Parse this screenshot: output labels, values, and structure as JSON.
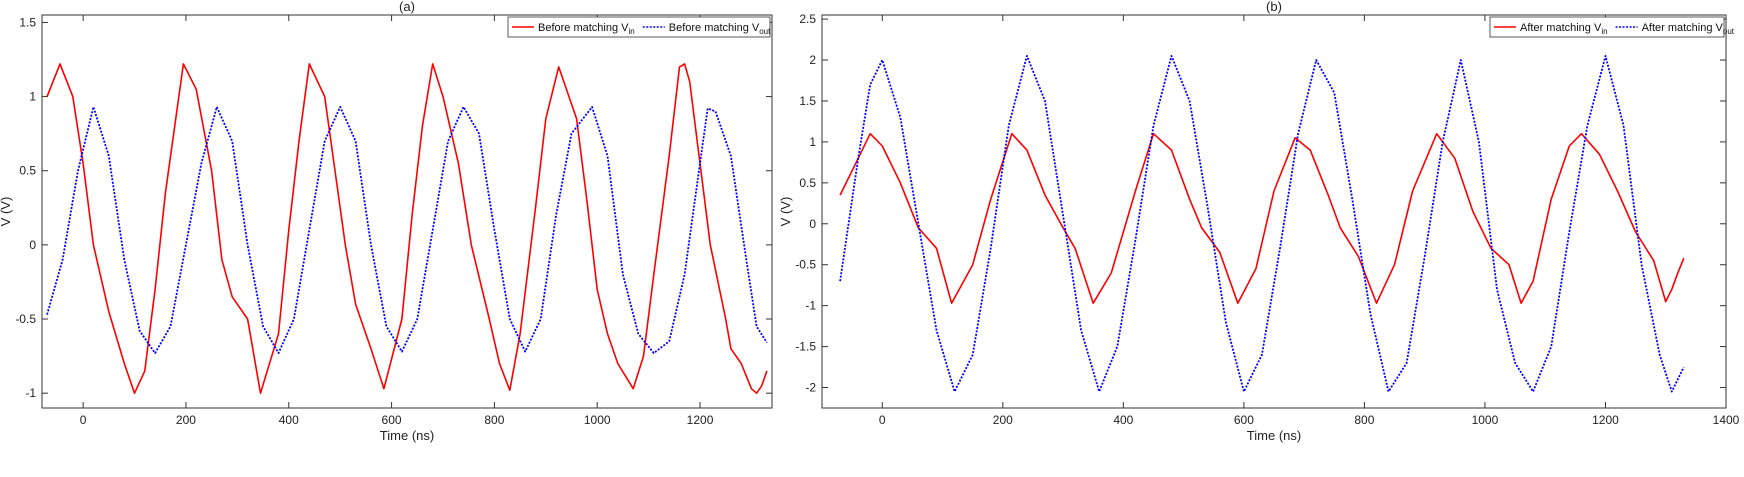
{
  "chart_data": [
    {
      "type": "line",
      "panel_title": "(a)",
      "xlabel": "Time (ns)",
      "ylabel": "V (V)",
      "xlim": [
        -80,
        1340
      ],
      "ylim": [
        -1.1,
        1.55
      ],
      "xticks": [
        0,
        200,
        400,
        600,
        800,
        1000,
        1200
      ],
      "yticks": [
        -1,
        -0.5,
        0,
        0.5,
        1,
        1.5
      ],
      "legend": "top-right",
      "series": [
        {
          "name": "Before matching V",
          "name_sub": "in",
          "color": "#ff0000",
          "style": "solid",
          "x": [
            -70,
            -45,
            -20,
            0,
            20,
            50,
            80,
            100,
            120,
            140,
            160,
            195,
            220,
            250,
            270,
            290,
            320,
            345,
            380,
            400,
            420,
            440,
            470,
            490,
            510,
            530,
            560,
            585,
            620,
            640,
            660,
            680,
            700,
            730,
            755,
            790,
            810,
            830,
            850,
            880,
            900,
            925,
            960,
            980,
            1000,
            1020,
            1040,
            1070,
            1090,
            1110,
            1140,
            1160,
            1170,
            1180,
            1200,
            1220,
            1250,
            1260,
            1280,
            1300,
            1310,
            1320,
            1330
          ],
          "y": [
            1.0,
            1.22,
            1.0,
            0.55,
            0.0,
            -0.45,
            -0.8,
            -1.0,
            -0.85,
            -0.3,
            0.35,
            1.22,
            1.05,
            0.5,
            -0.1,
            -0.35,
            -0.5,
            -1.0,
            -0.6,
            0.1,
            0.7,
            1.22,
            1.0,
            0.5,
            0.0,
            -0.4,
            -0.7,
            -0.97,
            -0.5,
            0.2,
            0.8,
            1.22,
            1.0,
            0.55,
            0.0,
            -0.5,
            -0.8,
            -0.98,
            -0.6,
            0.25,
            0.85,
            1.2,
            0.85,
            0.3,
            -0.3,
            -0.6,
            -0.8,
            -0.97,
            -0.75,
            -0.2,
            0.6,
            1.2,
            1.22,
            1.1,
            0.55,
            0.0,
            -0.5,
            -0.7,
            -0.8,
            -0.97,
            -1.0,
            -0.95,
            -0.85
          ]
        },
        {
          "name": "Before matching V",
          "name_sub": "out",
          "color": "#0000ff",
          "style": "dotted",
          "x": [
            -70,
            -40,
            -10,
            20,
            50,
            80,
            110,
            140,
            170,
            200,
            230,
            260,
            290,
            320,
            350,
            380,
            410,
            440,
            470,
            500,
            530,
            560,
            590,
            620,
            650,
            680,
            710,
            740,
            770,
            800,
            830,
            860,
            890,
            920,
            950,
            990,
            1020,
            1050,
            1080,
            1110,
            1140,
            1170,
            1200,
            1215,
            1230,
            1260,
            1290,
            1310,
            1330
          ],
          "y": [
            -0.47,
            -0.1,
            0.5,
            0.93,
            0.6,
            -0.1,
            -0.58,
            -0.73,
            -0.55,
            0.0,
            0.55,
            0.93,
            0.7,
            0.0,
            -0.55,
            -0.73,
            -0.5,
            0.1,
            0.7,
            0.93,
            0.7,
            0.0,
            -0.55,
            -0.72,
            -0.5,
            0.1,
            0.7,
            0.93,
            0.75,
            0.1,
            -0.5,
            -0.72,
            -0.5,
            0.2,
            0.75,
            0.93,
            0.6,
            -0.2,
            -0.6,
            -0.73,
            -0.65,
            -0.2,
            0.55,
            0.92,
            0.9,
            0.6,
            -0.1,
            -0.55,
            -0.66
          ]
        }
      ]
    },
    {
      "type": "line",
      "panel_title": "(b)",
      "xlabel": "Time (ns)",
      "ylabel": "V (V)",
      "xlim": [
        -100,
        1400
      ],
      "ylim": [
        -2.25,
        2.55
      ],
      "xticks": [
        0,
        200,
        400,
        600,
        800,
        1000,
        1200,
        1400
      ],
      "yticks": [
        -2,
        -1.5,
        -1,
        -0.5,
        0,
        0.5,
        1,
        1.5,
        2,
        2.5
      ],
      "legend": "top-right",
      "series": [
        {
          "name": "After matching V",
          "name_sub": "in",
          "color": "#ff0000",
          "style": "solid",
          "x": [
            -70,
            -40,
            -20,
            0,
            30,
            60,
            90,
            115,
            150,
            180,
            215,
            240,
            270,
            300,
            320,
            350,
            380,
            420,
            450,
            480,
            510,
            530,
            560,
            590,
            620,
            650,
            685,
            710,
            740,
            760,
            790,
            820,
            850,
            880,
            920,
            950,
            980,
            1010,
            1040,
            1060,
            1080,
            1110,
            1140,
            1160,
            1190,
            1220,
            1250,
            1280,
            1300,
            1310,
            1320,
            1330
          ],
          "y": [
            0.35,
            0.8,
            1.1,
            0.95,
            0.5,
            -0.05,
            -0.3,
            -0.97,
            -0.5,
            0.3,
            1.1,
            0.9,
            0.35,
            -0.05,
            -0.3,
            -0.97,
            -0.6,
            0.4,
            1.1,
            0.9,
            0.3,
            -0.05,
            -0.35,
            -0.97,
            -0.55,
            0.4,
            1.05,
            0.9,
            0.35,
            -0.05,
            -0.4,
            -0.97,
            -0.5,
            0.4,
            1.1,
            0.8,
            0.15,
            -0.3,
            -0.5,
            -0.97,
            -0.7,
            0.3,
            0.95,
            1.1,
            0.85,
            0.4,
            -0.1,
            -0.45,
            -0.95,
            -0.8,
            -0.6,
            -0.42
          ]
        },
        {
          "name": "After matching V",
          "name_sub": "out",
          "color": "#0000ff",
          "style": "dotted",
          "x": [
            -70,
            -40,
            -20,
            0,
            30,
            60,
            90,
            120,
            150,
            180,
            210,
            240,
            270,
            300,
            330,
            360,
            390,
            420,
            450,
            480,
            510,
            540,
            570,
            600,
            630,
            660,
            690,
            720,
            750,
            780,
            810,
            840,
            870,
            900,
            930,
            960,
            990,
            1020,
            1050,
            1080,
            1110,
            1140,
            1170,
            1200,
            1230,
            1260,
            1290,
            1310,
            1330
          ],
          "y": [
            -0.7,
            0.8,
            1.7,
            2.0,
            1.3,
            0.0,
            -1.3,
            -2.05,
            -1.6,
            -0.3,
            1.2,
            2.05,
            1.5,
            0.1,
            -1.3,
            -2.05,
            -1.5,
            -0.2,
            1.2,
            2.05,
            1.5,
            0.2,
            -1.2,
            -2.05,
            -1.6,
            -0.3,
            1.1,
            2.0,
            1.6,
            0.3,
            -1.1,
            -2.05,
            -1.7,
            -0.4,
            1.0,
            2.0,
            1.0,
            -0.8,
            -1.7,
            -2.05,
            -1.5,
            -0.1,
            1.2,
            2.05,
            1.2,
            -0.5,
            -1.6,
            -2.05,
            -1.75
          ]
        }
      ]
    }
  ]
}
